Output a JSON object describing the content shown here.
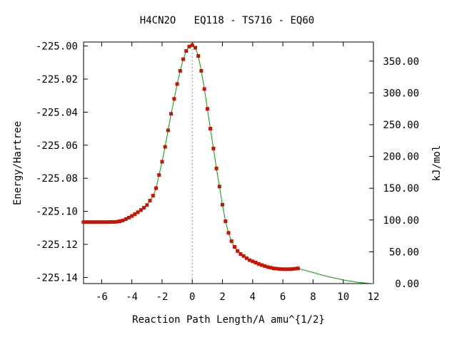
{
  "chart_data": {
    "type": "scatter",
    "title": "H4CN2O   EQ118 - TS716 - EQ60",
    "xlabel": "Reaction Path Length/A amu^{1/2}",
    "ylabel": "Energy/Hartree",
    "y2label": "kJ/mol",
    "xlim": [
      -7.2,
      12
    ],
    "ylim": [
      -225.1437,
      -224.9976
    ],
    "y2lim": [
      0,
      380
    ],
    "xticks": [
      "-6",
      "-4",
      "-2",
      "0",
      "2",
      "4",
      "6",
      "8",
      "10",
      "12"
    ],
    "xtick_values": [
      -6,
      -4,
      -2,
      0,
      2,
      4,
      6,
      8,
      10,
      12
    ],
    "yticks": [
      "-225.00",
      "-225.02",
      "-225.04",
      "-225.06",
      "-225.08",
      "-225.10",
      "-225.12",
      "-225.14"
    ],
    "ytick_values": [
      -225.0,
      -225.02,
      -225.04,
      -225.06,
      -225.08,
      -225.1,
      -225.12,
      -225.14
    ],
    "y2ticks": [
      "0.00",
      "50.00",
      "100.00",
      "150.00",
      "200.00",
      "250.00",
      "300.00",
      "350.00"
    ],
    "y2tick_values": [
      0,
      50,
      100,
      150,
      200,
      250,
      300,
      350
    ],
    "ts_marker_x": 0,
    "grid": false,
    "series": [
      {
        "color": "#00a000",
        "style": "line",
        "x": [
          -7.2,
          -6.0,
          -5.0,
          -4.7,
          -4.4,
          -4.0,
          -3.6,
          -3.2,
          -2.9,
          -2.6,
          -2.4,
          -2.2,
          -2.0,
          -1.8,
          -1.6,
          -1.4,
          -1.2,
          -1.0,
          -0.8,
          -0.6,
          -0.4,
          -0.2,
          0.0,
          0.2,
          0.4,
          0.6,
          0.8,
          1.0,
          1.2,
          1.4,
          1.6,
          1.8,
          2.0,
          2.2,
          2.4,
          2.6,
          2.8,
          3.0,
          3.4,
          3.8,
          4.2,
          4.6,
          5.0,
          5.5,
          6.0,
          6.5,
          7.0,
          8.0,
          9.0,
          10.0,
          11.0,
          12.0
        ],
        "y": [
          -225.1065,
          -225.1065,
          -225.1064,
          -225.106,
          -225.105,
          -225.103,
          -225.1005,
          -225.0978,
          -225.095,
          -225.091,
          -225.086,
          -225.078,
          -225.07,
          -225.061,
          -225.051,
          -225.041,
          -225.032,
          -225.023,
          -225.015,
          -225.008,
          -225.003,
          -225.0003,
          -224.9995,
          -225.001,
          -225.006,
          -225.015,
          -225.026,
          -225.038,
          -225.05,
          -225.062,
          -225.074,
          -225.085,
          -225.096,
          -225.106,
          -225.113,
          -225.118,
          -225.1215,
          -225.124,
          -225.127,
          -225.1295,
          -225.131,
          -225.1325,
          -225.1337,
          -225.1345,
          -225.135,
          -225.135,
          -225.1345,
          -225.137,
          -225.1395,
          -225.1415,
          -225.143,
          -225.1437
        ]
      },
      {
        "color": "#d01000",
        "style": "markers",
        "x": [
          -7.2,
          -7.0,
          -6.8,
          -6.6,
          -6.4,
          -6.2,
          -6.0,
          -5.8,
          -5.6,
          -5.4,
          -5.2,
          -5.0,
          -4.8,
          -4.6,
          -4.4,
          -4.2,
          -4.0,
          -3.8,
          -3.6,
          -3.4,
          -3.2,
          -3.0,
          -2.8,
          -2.6,
          -2.4,
          -2.2,
          -2.0,
          -1.8,
          -1.6,
          -1.4,
          -1.2,
          -1.0,
          -0.8,
          -0.6,
          -0.4,
          -0.2,
          0.0,
          0.2,
          0.4,
          0.6,
          0.8,
          1.0,
          1.2,
          1.4,
          1.6,
          1.8,
          2.0,
          2.2,
          2.4,
          2.6,
          2.8,
          3.0,
          3.2,
          3.4,
          3.6,
          3.8,
          4.0,
          4.2,
          4.4,
          4.6,
          4.8,
          5.0,
          5.2,
          5.4,
          5.6,
          5.8,
          6.0,
          6.2,
          6.4,
          6.6,
          6.8,
          7.0
        ],
        "y": [
          -225.1065,
          -225.1065,
          -225.1065,
          -225.1065,
          -225.1065,
          -225.1065,
          -225.1065,
          -225.1065,
          -225.1065,
          -225.1064,
          -225.1064,
          -225.1063,
          -225.106,
          -225.1055,
          -225.1047,
          -225.1038,
          -225.1028,
          -225.1017,
          -225.1005,
          -225.0992,
          -225.0978,
          -225.0962,
          -225.0935,
          -225.0905,
          -225.086,
          -225.078,
          -225.07,
          -225.061,
          -225.051,
          -225.041,
          -225.032,
          -225.023,
          -225.015,
          -225.008,
          -225.003,
          -225.0003,
          -224.9995,
          -225.001,
          -225.006,
          -225.015,
          -225.026,
          -225.038,
          -225.05,
          -225.062,
          -225.074,
          -225.085,
          -225.096,
          -225.106,
          -225.113,
          -225.118,
          -225.1215,
          -225.124,
          -225.1258,
          -225.127,
          -225.1283,
          -225.1295,
          -225.1303,
          -225.131,
          -225.1318,
          -225.1325,
          -225.1331,
          -225.1337,
          -225.1341,
          -225.1345,
          -225.1347,
          -225.1349,
          -225.135,
          -225.135,
          -225.135,
          -225.1349,
          -225.1347,
          -225.1345
        ]
      }
    ]
  }
}
